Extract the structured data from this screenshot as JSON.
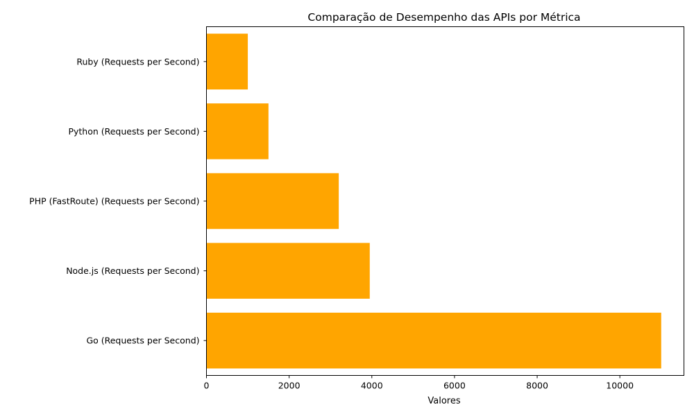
{
  "chart_data": {
    "type": "bar",
    "orientation": "horizontal",
    "title": "Comparação de Desempenho das APIs por Métrica",
    "xlabel": "Valores",
    "ylabel": "",
    "categories": [
      "Ruby (Requests per Second)",
      "Python (Requests per Second)",
      "PHP (FastRoute) (Requests per Second)",
      "Node.js (Requests per Second)",
      "Go (Requests per Second)"
    ],
    "values": [
      1000,
      1500,
      3200,
      3950,
      11000
    ],
    "xlim": [
      0,
      11550
    ],
    "xticks": [
      0,
      2000,
      4000,
      6000,
      8000,
      10000
    ],
    "xtick_labels": [
      "0",
      "2000",
      "4000",
      "6000",
      "8000",
      "10000"
    ],
    "bar_color": "#FFA500",
    "grid": false,
    "legend": "none"
  }
}
